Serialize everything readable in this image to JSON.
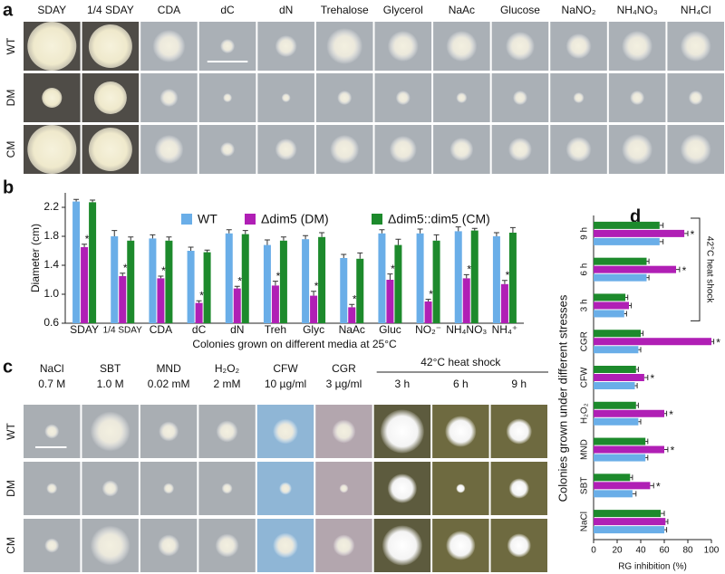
{
  "panel_labels": [
    "a",
    "b",
    "c",
    "d"
  ],
  "panel_a": {
    "columns": [
      "SDAY",
      "1/4 SDAY",
      "CDA",
      "dC",
      "dN",
      "Trehalose",
      "Glycerol",
      "NaAc",
      "Glucose",
      "NaNO₂",
      "NH₄NO₃",
      "NH₄Cl"
    ],
    "rows": [
      "WT",
      "DM",
      "CM"
    ]
  },
  "panel_c": {
    "columns": [
      [
        "NaCl",
        "0.7 M"
      ],
      [
        "SBT",
        "1.0 M"
      ],
      [
        "MND",
        "0.02 mM"
      ],
      [
        "H₂O₂",
        "2 mM"
      ],
      [
        "CFW",
        "10 µg/ml"
      ],
      [
        "CGR",
        "3 µg/ml"
      ],
      [
        "3 h"
      ],
      [
        "6 h"
      ],
      [
        "9 h"
      ]
    ],
    "group_label": "42°C heat shock",
    "rows": [
      "WT",
      "DM",
      "CM"
    ]
  },
  "chart_data": [
    {
      "type": "bar",
      "y_label": "Diameter (cm)",
      "x_label": "Colonies grown on different media at 25°C",
      "categories": [
        "SDAY",
        "1/4 SDAY",
        "CDA",
        "dC",
        "dN",
        "Treh",
        "Glyc",
        "NaAc",
        "Gluc",
        "NO₂⁻",
        "NH₄NO₃",
        "NH₄⁺"
      ],
      "series": [
        {
          "name": "WT",
          "color": "#6aaee8",
          "values": [
            2.28,
            1.8,
            1.77,
            1.6,
            1.84,
            1.68,
            1.76,
            1.5,
            1.84,
            1.84,
            1.87,
            1.8
          ],
          "errors": [
            0.03,
            0.08,
            0.05,
            0.05,
            0.05,
            0.07,
            0.05,
            0.05,
            0.05,
            0.06,
            0.06,
            0.05
          ]
        },
        {
          "name": "Δdim5 (DM)",
          "color": "#b01fb5",
          "values": [
            1.65,
            1.25,
            1.22,
            0.88,
            1.08,
            1.12,
            0.98,
            0.82,
            1.2,
            0.9,
            1.22,
            1.14
          ],
          "errors": [
            0.04,
            0.04,
            0.03,
            0.03,
            0.03,
            0.06,
            0.06,
            0.04,
            0.08,
            0.03,
            0.05,
            0.05
          ],
          "annotations": [
            "*",
            "*",
            "*",
            "*",
            "*",
            "*",
            "*",
            "*",
            "*",
            "*",
            "*",
            "*"
          ]
        },
        {
          "name": "Δdim5::dim5 (CM)",
          "color": "#1d8a2c",
          "values": [
            2.27,
            1.74,
            1.74,
            1.58,
            1.83,
            1.74,
            1.79,
            1.49,
            1.68,
            1.74,
            1.88,
            1.85
          ],
          "errors": [
            0.03,
            0.05,
            0.05,
            0.03,
            0.05,
            0.05,
            0.06,
            0.08,
            0.08,
            0.08,
            0.03,
            0.07
          ]
        }
      ],
      "ylim": [
        0.6,
        2.4
      ],
      "yticks": [
        0.6,
        {
          "value": 1,
          "label": "1.0"
        },
        1.4,
        1.8,
        2.2
      ],
      "legend": "top"
    },
    {
      "type": "hbar",
      "x_label": "RG inhibition (%)",
      "y_label": "Colonies grown under different stresses",
      "group_label": "42°C heat shock",
      "categories": [
        "NaCl",
        "SBT",
        "MND",
        "H₂O₂",
        "CFW",
        "CGR",
        "3 h",
        "6 h",
        "9 h"
      ],
      "series": [
        {
          "name": "WT",
          "color": "#6aaee8",
          "values": [
            60,
            33,
            44,
            38,
            35,
            38,
            26,
            45,
            56
          ],
          "errors": [
            2,
            3,
            2,
            2,
            2,
            2,
            2,
            2,
            3
          ]
        },
        {
          "name": "Δdim5 (DM)",
          "color": "#b01fb5",
          "values": [
            61,
            48,
            60,
            60,
            43,
            100,
            30,
            70,
            77
          ],
          "errors": [
            2,
            3,
            3,
            2,
            3,
            2,
            2,
            3,
            3
          ],
          "annotations": [
            null,
            "*",
            "*",
            "*",
            "*",
            "*",
            null,
            "*",
            "*"
          ]
        },
        {
          "name": "Δdim5::dim5 (CM)",
          "color": "#1d8a2c",
          "values": [
            57,
            31,
            44,
            36,
            36,
            40,
            27,
            45,
            56
          ],
          "errors": [
            3,
            2,
            2,
            2,
            2,
            2,
            2,
            2,
            3
          ]
        }
      ],
      "xlim": [
        0,
        100
      ],
      "xticks": [
        0,
        20,
        40,
        60,
        80,
        100
      ]
    }
  ]
}
